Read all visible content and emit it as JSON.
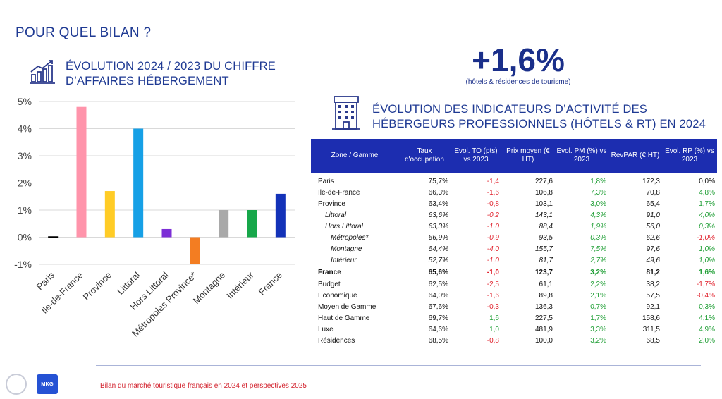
{
  "page": {
    "title": "POUR QUEL BILAN ?",
    "footer_text": "Bilan du marché touristique français en 2024 et perspectives 2025",
    "logo_mkg": "MKG"
  },
  "chart": {
    "title_line1": "ÉVOLUTION 2024 / 2023 DU CHIFFRE",
    "title_line2": "D’AFFAIRES HÉBERGEMENT"
  },
  "kpi": {
    "value": "+1,6%",
    "caption": "(hôtels & résidences de tourisme)"
  },
  "table": {
    "title_line1": "ÉVOLUTION DES INDICATEURS D’ACTIVITÉ DES",
    "title_line2": "HÉBERGEURS PROFESSIONNELS (HÔTELS & RT) EN 2024",
    "headers": [
      "Zone / Gamme",
      "Taux d'occupation",
      "Evol. TO (pts) vs 2023",
      "Prix moyen (€ HT)",
      "Evol. PM (%) vs 2023",
      "RevPAR (€ HT)",
      "Evol. RP (%) vs 2023"
    ],
    "rows": [
      {
        "zone": "Paris",
        "to": "75,7%",
        "evol_to": "-1,4",
        "pm": "227,6",
        "evol_pm": "1,8%",
        "revpar": "172,3",
        "evol_rp": "0,0%",
        "style": "",
        "c": [
          "neg",
          "pos",
          "neu"
        ]
      },
      {
        "zone": "Ile-de-France",
        "to": "66,3%",
        "evol_to": "-1,6",
        "pm": "106,8",
        "evol_pm": "7,3%",
        "revpar": "70,8",
        "evol_rp": "4,8%",
        "style": "",
        "c": [
          "neg",
          "pos",
          "pos"
        ]
      },
      {
        "zone": "Province",
        "to": "63,4%",
        "evol_to": "-0,8",
        "pm": "103,1",
        "evol_pm": "3,0%",
        "revpar": "65,4",
        "evol_rp": "1,7%",
        "style": "",
        "c": [
          "neg",
          "pos",
          "pos"
        ]
      },
      {
        "zone": "Littoral",
        "to": "63,6%",
        "evol_to": "-0,2",
        "pm": "143,1",
        "evol_pm": "4,3%",
        "revpar": "91,0",
        "evol_rp": "4,0%",
        "style": "italic indent1",
        "c": [
          "neg",
          "pos",
          "pos"
        ]
      },
      {
        "zone": "Hors Littoral",
        "to": "63,3%",
        "evol_to": "-1,0",
        "pm": "88,4",
        "evol_pm": "1,9%",
        "revpar": "56,0",
        "evol_rp": "0,3%",
        "style": "italic indent1",
        "c": [
          "neg",
          "pos",
          "pos"
        ]
      },
      {
        "zone": "Métropoles*",
        "to": "66,9%",
        "evol_to": "-0,9",
        "pm": "93,5",
        "evol_pm": "0,3%",
        "revpar": "62,6",
        "evol_rp": "-1,0%",
        "style": "italic indent2",
        "c": [
          "neg",
          "pos",
          "neg"
        ]
      },
      {
        "zone": "Montagne",
        "to": "64,4%",
        "evol_to": "-4,0",
        "pm": "155,7",
        "evol_pm": "7,5%",
        "revpar": "97,6",
        "evol_rp": "1,0%",
        "style": "italic indent2",
        "c": [
          "neg",
          "pos",
          "pos"
        ]
      },
      {
        "zone": "Intérieur",
        "to": "52,7%",
        "evol_to": "-1,0",
        "pm": "81,7",
        "evol_pm": "2,7%",
        "revpar": "49,6",
        "evol_rp": "1,0%",
        "style": "italic indent2",
        "c": [
          "neg",
          "pos",
          "pos"
        ]
      },
      {
        "zone": "France",
        "to": "65,6%",
        "evol_to": "-1,0",
        "pm": "123,7",
        "evol_pm": "3,2%",
        "revpar": "81,2",
        "evol_rp": "1,6%",
        "style": "total",
        "c": [
          "neg",
          "pos",
          "pos"
        ]
      },
      {
        "zone": "Budget",
        "to": "62,5%",
        "evol_to": "-2,5",
        "pm": "61,1",
        "evol_pm": "2,2%",
        "revpar": "38,2",
        "evol_rp": "-1,7%",
        "style": "",
        "c": [
          "neg",
          "pos",
          "neg"
        ]
      },
      {
        "zone": "Economique",
        "to": "64,0%",
        "evol_to": "-1,6",
        "pm": "89,8",
        "evol_pm": "2,1%",
        "revpar": "57,5",
        "evol_rp": "-0,4%",
        "style": "",
        "c": [
          "neg",
          "pos",
          "neg"
        ]
      },
      {
        "zone": "Moyen de Gamme",
        "to": "67,6%",
        "evol_to": "-0,3",
        "pm": "136,3",
        "evol_pm": "0,7%",
        "revpar": "92,1",
        "evol_rp": "0,3%",
        "style": "",
        "c": [
          "neg",
          "pos",
          "pos"
        ]
      },
      {
        "zone": "Haut de Gamme",
        "to": "69,7%",
        "evol_to": "1,6",
        "pm": "227,5",
        "evol_pm": "1,7%",
        "revpar": "158,6",
        "evol_rp": "4,1%",
        "style": "",
        "c": [
          "pos",
          "pos",
          "pos"
        ]
      },
      {
        "zone": "Luxe",
        "to": "64,6%",
        "evol_to": "1,0",
        "pm": "481,9",
        "evol_pm": "3,3%",
        "revpar": "311,5",
        "evol_rp": "4,9%",
        "style": "",
        "c": [
          "pos",
          "pos",
          "pos"
        ]
      },
      {
        "zone": "Résidences",
        "to": "68,5%",
        "evol_to": "-0,8",
        "pm": "100,0",
        "evol_pm": "3,2%",
        "revpar": "68,5",
        "evol_rp": "2,0%",
        "style": "",
        "c": [
          "neg",
          "pos",
          "pos"
        ]
      }
    ]
  },
  "chart_data": {
    "type": "bar",
    "title": "ÉVOLUTION 2024 / 2023 DU CHIFFRE D’AFFAIRES HÉBERGEMENT",
    "categories": [
      "Paris",
      "Ile-de-France",
      "Province",
      "Littoral",
      "Hors Littoral",
      "Métropoles Province*",
      "Montagne",
      "Intérieur",
      "France"
    ],
    "values": [
      0.0,
      4.8,
      1.7,
      4.0,
      0.3,
      -1.0,
      1.0,
      1.0,
      1.6
    ],
    "colors": [
      "#000000",
      "#ff94ab",
      "#ffcc26",
      "#16a0e6",
      "#7c2ed6",
      "#f37d22",
      "#a9a9a9",
      "#17a74a",
      "#1332b8"
    ],
    "ylim": [
      -1,
      5
    ],
    "yticks": [
      "-1%",
      "0%",
      "1%",
      "2%",
      "3%",
      "4%",
      "5%"
    ],
    "ytick_values": [
      -1,
      0,
      1,
      2,
      3,
      4,
      5
    ],
    "grid": true,
    "legend": "none",
    "xlabel": "",
    "ylabel": ""
  }
}
